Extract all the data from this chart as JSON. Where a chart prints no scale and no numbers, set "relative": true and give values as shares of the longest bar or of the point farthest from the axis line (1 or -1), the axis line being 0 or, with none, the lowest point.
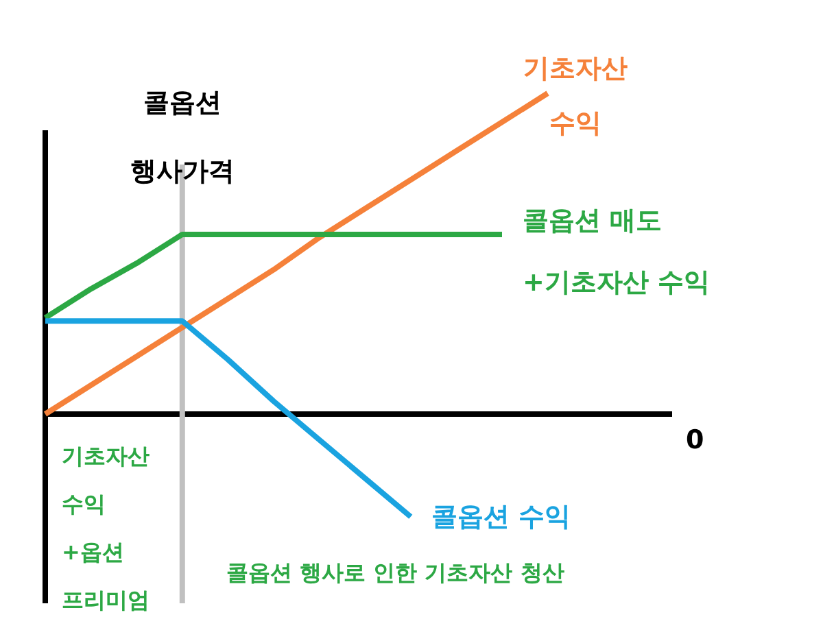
{
  "chart_data": {
    "type": "line",
    "relative": true,
    "line_style": "solid",
    "categories": [
      null,
      null,
      null,
      null,
      null,
      null,
      null,
      null,
      null,
      null,
      null,
      null,
      null,
      null
    ],
    "series": [
      {
        "name": "기초자산 수익",
        "color": "#f5813a",
        "values": [
          0,
          0.09,
          0.18,
          0.27,
          0.36,
          0.45,
          0.55,
          0.64,
          0.73,
          0.82,
          0.91,
          1,
          null,
          null
        ]
      },
      {
        "name": "콜옵션 매도 +기초자산 수익",
        "color": "#2ca844",
        "values": [
          0.3,
          0.39,
          0.47,
          0.56,
          0.56,
          0.56,
          0.56,
          0.56,
          0.56,
          0.56,
          0.56,
          null,
          null,
          null
        ]
      },
      {
        "name": "콜옵션 수익",
        "color": "#1aa3e0",
        "values": [
          0.29,
          0.29,
          0.29,
          0.29,
          0.17,
          0.04,
          -0.08,
          -0.2,
          -0.32,
          null,
          null,
          null,
          null,
          null
        ]
      }
    ],
    "annotations": [
      "콜옵션 행사가격",
      "0",
      "기초자산 수익 +옵션 프리미엄",
      "콜옵션 행사로 인한 기초자산 청산"
    ]
  }
}
